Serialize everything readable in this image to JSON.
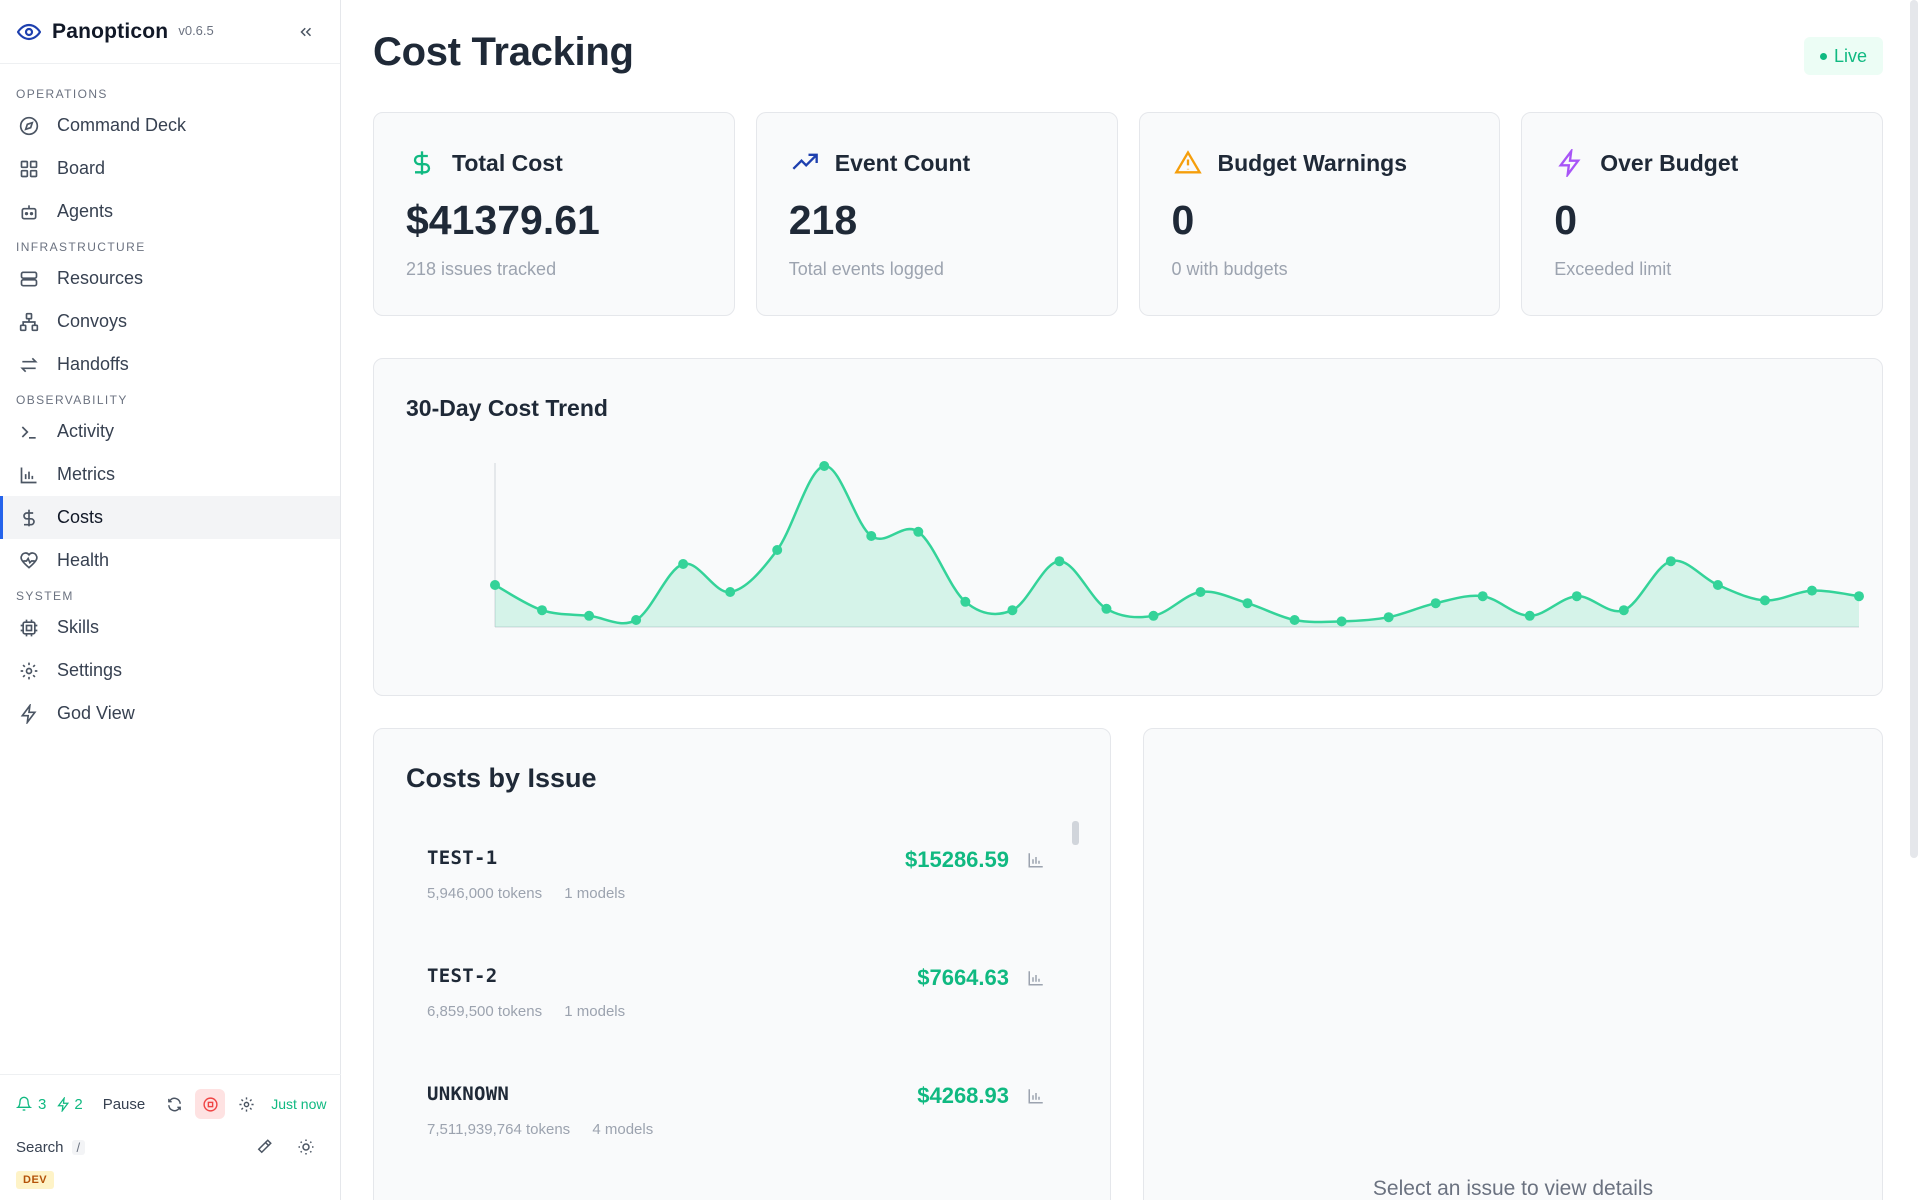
{
  "app": {
    "name": "Panopticon",
    "version": "v0.6.5"
  },
  "sidebar": {
    "sections": [
      {
        "label": "OPERATIONS",
        "items": [
          {
            "label": "Command Deck",
            "icon": "compass-icon"
          },
          {
            "label": "Board",
            "icon": "grid-icon"
          },
          {
            "label": "Agents",
            "icon": "bot-icon"
          }
        ]
      },
      {
        "label": "INFRASTRUCTURE",
        "items": [
          {
            "label": "Resources",
            "icon": "server-icon"
          },
          {
            "label": "Convoys",
            "icon": "network-icon"
          },
          {
            "label": "Handoffs",
            "icon": "arrows-icon"
          }
        ]
      },
      {
        "label": "OBSERVABILITY",
        "items": [
          {
            "label": "Activity",
            "icon": "terminal-icon"
          },
          {
            "label": "Metrics",
            "icon": "bar-chart-icon"
          },
          {
            "label": "Costs",
            "icon": "dollar-icon",
            "active": true
          },
          {
            "label": "Health",
            "icon": "heart-pulse-icon"
          }
        ]
      },
      {
        "label": "SYSTEM",
        "items": [
          {
            "label": "Skills",
            "icon": "chip-icon"
          },
          {
            "label": "Settings",
            "icon": "gear-icon"
          },
          {
            "label": "God View",
            "icon": "bolt-icon"
          }
        ]
      }
    ],
    "footer": {
      "notif_count": "3",
      "bolt_count": "2",
      "pause_label": "Pause",
      "updated": "Just now",
      "search_label": "Search",
      "search_shortcut": "/",
      "env_badge": "DEV"
    }
  },
  "page": {
    "title": "Cost Tracking",
    "live_label": "Live"
  },
  "stats": [
    {
      "title": "Total Cost",
      "value": "$41379.61",
      "sub": "218 issues tracked",
      "icon": "dollar-icon",
      "color": "#10b981"
    },
    {
      "title": "Event Count",
      "value": "218",
      "sub": "Total events logged",
      "icon": "trending-up-icon",
      "color": "#1e40af"
    },
    {
      "title": "Budget Warnings",
      "value": "0",
      "sub": "0 with budgets",
      "icon": "warning-icon",
      "color": "#f59e0b"
    },
    {
      "title": "Over Budget",
      "value": "0",
      "sub": "Exceeded limit",
      "icon": "bolt-icon",
      "color": "#a855f7"
    }
  ],
  "trend": {
    "title": "30-Day Cost Trend"
  },
  "chart_data": {
    "type": "area",
    "title": "30-Day Cost Trend",
    "x": [
      1,
      2,
      3,
      4,
      5,
      6,
      7,
      8,
      9,
      10,
      11,
      12,
      13,
      14,
      15,
      16,
      17,
      18,
      19,
      20,
      21,
      22,
      23,
      24,
      25,
      26,
      27,
      28,
      29,
      30
    ],
    "values": [
      30,
      12,
      8,
      5,
      45,
      25,
      55,
      115,
      65,
      68,
      18,
      12,
      47,
      13,
      8,
      25,
      17,
      5,
      4,
      7,
      17,
      22,
      8,
      22,
      12,
      47,
      30,
      19,
      26,
      22
    ],
    "ylim": [
      0,
      120
    ],
    "color": "#34d399",
    "grid": false
  },
  "issues": {
    "title": "Costs by Issue",
    "rows": [
      {
        "id": "TEST-1",
        "amount": "$15286.59",
        "tokens": "5,946,000 tokens",
        "models": "1 models"
      },
      {
        "id": "TEST-2",
        "amount": "$7664.63",
        "tokens": "6,859,500 tokens",
        "models": "1 models"
      },
      {
        "id": "UNKNOWN",
        "amount": "$4268.93",
        "tokens": "7,511,939,764 tokens",
        "models": "4 models"
      }
    ]
  },
  "detail": {
    "empty_text": "Select an issue to view details"
  }
}
